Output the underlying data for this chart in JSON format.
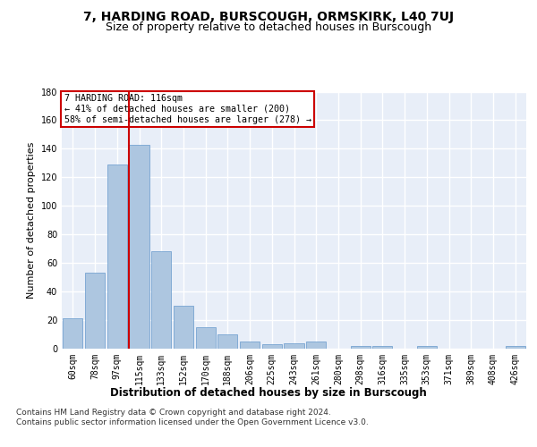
{
  "title": "7, HARDING ROAD, BURSCOUGH, ORMSKIRK, L40 7UJ",
  "subtitle": "Size of property relative to detached houses in Burscough",
  "xlabel": "Distribution of detached houses by size in Burscough",
  "ylabel": "Number of detached properties",
  "categories": [
    "60sqm",
    "78sqm",
    "97sqm",
    "115sqm",
    "133sqm",
    "152sqm",
    "170sqm",
    "188sqm",
    "206sqm",
    "225sqm",
    "243sqm",
    "261sqm",
    "280sqm",
    "298sqm",
    "316sqm",
    "335sqm",
    "353sqm",
    "371sqm",
    "389sqm",
    "408sqm",
    "426sqm"
  ],
  "values": [
    21,
    53,
    129,
    143,
    68,
    30,
    15,
    10,
    5,
    3,
    4,
    5,
    0,
    2,
    2,
    0,
    2,
    0,
    0,
    0,
    2
  ],
  "bar_color": "#adc6e0",
  "bar_edge_color": "#6699cc",
  "vline_color": "#cc0000",
  "annotation_text": "7 HARDING ROAD: 116sqm\n← 41% of detached houses are smaller (200)\n58% of semi-detached houses are larger (278) →",
  "annotation_box_color": "#ffffff",
  "annotation_box_edge": "#cc0000",
  "ylim": [
    0,
    180
  ],
  "yticks": [
    0,
    20,
    40,
    60,
    80,
    100,
    120,
    140,
    160,
    180
  ],
  "background_color": "#e8eef8",
  "grid_color": "#ffffff",
  "footer": "Contains HM Land Registry data © Crown copyright and database right 2024.\nContains public sector information licensed under the Open Government Licence v3.0.",
  "title_fontsize": 10,
  "subtitle_fontsize": 9,
  "xlabel_fontsize": 8.5,
  "ylabel_fontsize": 8,
  "tick_fontsize": 7,
  "footer_fontsize": 6.5
}
